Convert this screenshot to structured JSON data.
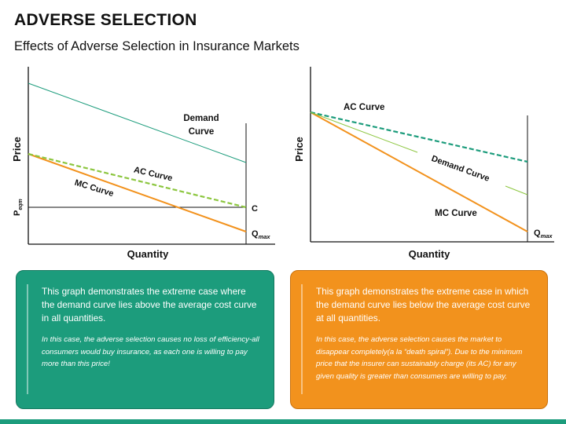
{
  "header": {
    "title": "ADVERSE SELECTION",
    "subtitle": "Effects of Adverse Selection in Insurance Markets"
  },
  "left_graph": {
    "y_axis_label": "Price",
    "x_axis_label": "Quantity",
    "p_eqm_main": "P",
    "p_eqm_sub": "eqm",
    "demand_label_line1": "Demand",
    "demand_label_line2": "Curve",
    "ac_label": "AC Curve",
    "mc_label": "MC Curve",
    "c_label": "C",
    "qmax_main": "Q",
    "qmax_sub": "max"
  },
  "right_graph": {
    "y_axis_label": "Price",
    "x_axis_label": "Quantity",
    "ac_label": "AC Curve",
    "demand_label": "Demand Curve",
    "mc_label": "MC Curve",
    "qmax_main": "Q",
    "qmax_sub": "max"
  },
  "left_box": {
    "main_text": "This graph demonstrates the extreme case where the demand curve lies above the average cost curve in all quantities.",
    "note_text": "In this case, the adverse selection causes no loss of efficiency-all consumers would buy insurance, as each one is willing to pay more than this price!"
  },
  "right_box": {
    "main_text": "This graph demonstrates the extreme case in which the demand curve lies below the average cost curve at all quantities.",
    "note_text": "In this case, the adverse selection causes the market to disappear completely(a la “death spiral”). Due to the minimum price that the insurer can sustainably charge (its AC) for any given quality is greater than consumers are willing to pay."
  },
  "colors": {
    "teal": "#1c9c7c",
    "orange": "#f2921d",
    "ac_dashed_left": "#8cc63f",
    "ac_dashed_right": "#1c9c7c",
    "demand_line": "#1c9c7c",
    "demand_line_right": "#8cc63f"
  }
}
